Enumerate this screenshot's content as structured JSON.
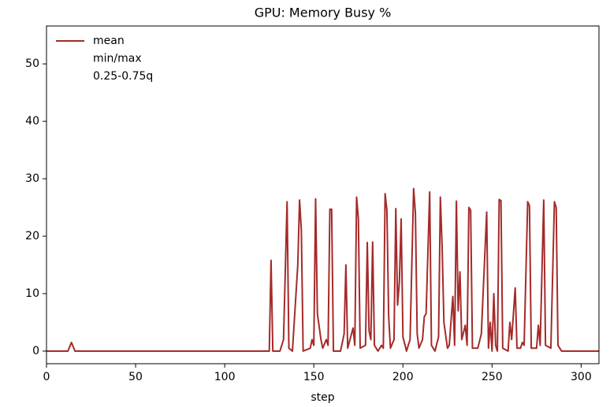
{
  "chart_data": {
    "type": "line",
    "title": "GPU: Memory Busy %",
    "x_label": "step",
    "xlim": [
      0,
      310
    ],
    "ylim": [
      -2.2,
      56.6
    ],
    "xticks": [
      0,
      50,
      100,
      150,
      200,
      250,
      300
    ],
    "yticks": [
      0,
      10,
      20,
      30,
      40,
      50
    ],
    "grid": false,
    "legend": {
      "corner": "upper left",
      "entries": [
        "mean",
        "min/max",
        "0.25-0.75q"
      ]
    },
    "series": [
      {
        "color": "#a52a2a",
        "x": [
          0,
          12,
          14,
          16,
          125,
          126,
          127,
          131,
          133,
          135,
          136,
          138,
          141,
          142,
          143,
          144,
          148,
          149,
          150,
          151,
          152,
          154,
          155,
          157,
          158,
          159,
          160,
          161,
          165,
          167,
          168,
          169,
          172,
          173,
          174,
          175,
          176,
          179,
          180,
          181,
          182,
          183,
          184,
          186,
          188,
          189,
          190,
          191,
          192,
          193,
          195,
          196,
          197,
          198,
          199,
          200,
          202,
          204,
          206,
          207,
          208,
          209,
          211,
          212,
          213,
          215,
          216,
          218,
          220,
          221,
          222,
          223,
          225,
          226,
          228,
          229,
          230,
          231,
          232,
          233,
          235,
          236,
          237,
          238,
          239,
          242,
          244,
          247,
          248,
          249,
          250,
          251,
          252,
          253,
          254,
          255,
          256,
          259,
          260,
          261,
          263,
          264,
          266,
          267,
          268,
          270,
          271,
          272,
          275,
          276,
          277,
          279,
          280,
          283,
          285,
          286,
          287,
          289,
          310
        ],
        "values": [
          0,
          0,
          1.5,
          0,
          0,
          15.8,
          0,
          0,
          2,
          26,
          0.5,
          0,
          15,
          26.3,
          21,
          0,
          0.5,
          2,
          1,
          26.5,
          6.5,
          2,
          0.5,
          2,
          1,
          24.7,
          24.7,
          0,
          0,
          3,
          15,
          0.5,
          4,
          1,
          26.8,
          23,
          0.5,
          1,
          18.9,
          3.5,
          2,
          19,
          1,
          0,
          1,
          0.5,
          27.4,
          24.5,
          6,
          0.5,
          2,
          24.8,
          8,
          12,
          23,
          2.5,
          0,
          2,
          28.3,
          24,
          3,
          0.5,
          2,
          6,
          6.5,
          27.7,
          1,
          0,
          2.5,
          26.8,
          18,
          5,
          0.5,
          1,
          9.5,
          1,
          26.1,
          7,
          13.8,
          2,
          4.5,
          1,
          25,
          24.5,
          0.5,
          0.5,
          3,
          24.2,
          0.5,
          5,
          0,
          10,
          1,
          0,
          26.4,
          26.2,
          0.5,
          0,
          5,
          2,
          11,
          0.5,
          0.5,
          1.5,
          1,
          26,
          25.3,
          0.5,
          0.5,
          4.5,
          1,
          26.3,
          1,
          0.5,
          26,
          25,
          1,
          0,
          0
        ]
      }
    ]
  }
}
